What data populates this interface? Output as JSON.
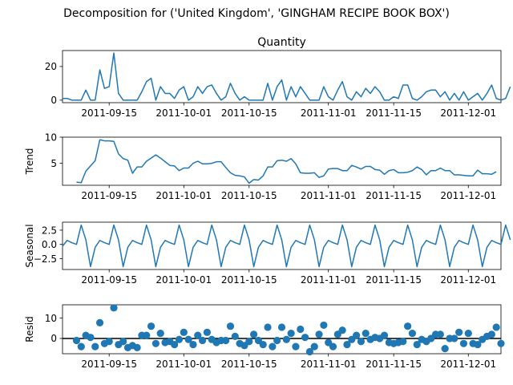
{
  "figure": {
    "suptitle": "Decomposition for ('United Kingdom', 'GINGHAM RECIPE BOOK BOX')"
  },
  "chart_data": {
    "type": "line",
    "x_start": "2011-09-05",
    "x_end": "2011-12-08",
    "x_ticks": [
      "2011-09-15",
      "2011-10-01",
      "2011-10-15",
      "2011-11-01",
      "2011-11-15",
      "2011-12-01"
    ],
    "panels": [
      {
        "key": "quantity",
        "type": "line",
        "title": "Quantity",
        "ylabel": "",
        "ylim": [
          -1.5,
          29.5
        ],
        "y_ticks": [
          0,
          20
        ],
        "values": [
          1,
          1,
          0,
          0,
          0,
          6,
          0,
          0,
          18,
          7,
          8,
          28,
          4,
          0,
          0,
          0,
          0,
          5,
          11,
          13,
          0,
          8,
          4,
          4,
          1,
          6,
          8,
          0,
          2,
          8,
          4,
          8,
          9,
          4,
          0,
          2,
          10,
          4,
          0,
          2,
          0,
          0,
          0,
          0,
          10,
          0,
          8,
          12,
          0,
          8,
          2,
          8,
          4,
          0,
          0,
          0,
          8,
          2,
          0,
          6,
          11,
          2,
          0,
          5,
          2,
          7,
          4,
          8,
          5,
          0,
          0,
          2,
          1,
          9,
          9,
          1,
          0,
          2,
          5,
          6,
          6,
          2,
          5,
          0,
          4,
          0,
          5,
          0,
          2,
          4,
          0,
          4,
          9,
          1,
          0,
          1,
          8
        ]
      },
      {
        "key": "trend",
        "type": "line",
        "title": "",
        "ylabel": "Trend",
        "ylim": [
          0.8,
          10.0
        ],
        "y_ticks": [
          5,
          10
        ],
        "start_index": 3,
        "values": [
          1.4,
          1.3,
          3.5,
          4.5,
          5.5,
          9.5,
          9.3,
          9.3,
          9.2,
          6.8,
          5.9,
          5.6,
          3.1,
          4.3,
          4.3,
          5.4,
          6.0,
          6.6,
          6.0,
          5.3,
          4.6,
          4.5,
          3.6,
          4.1,
          4.1,
          5.0,
          5.4,
          4.9,
          4.9,
          5.0,
          5.3,
          5.3,
          4.2,
          3.2,
          2.7,
          2.6,
          2.4,
          1.2,
          1.9,
          1.8,
          2.6,
          4.3,
          4.3,
          5.5,
          5.6,
          5.4,
          5.9,
          4.9,
          3.2,
          3.1,
          3.1,
          3.2,
          2.3,
          2.6,
          3.9,
          4.0,
          4.0,
          3.6,
          3.6,
          4.6,
          4.3,
          3.9,
          4.4,
          4.4,
          3.8,
          3.7,
          2.9,
          3.6,
          3.8,
          3.2,
          3.2,
          3.3,
          3.6,
          4.3,
          3.8,
          2.8,
          3.6,
          3.6,
          4.1,
          3.6,
          3.6,
          2.8,
          2.8,
          2.7,
          2.6,
          2.6,
          3.7,
          3.0,
          3.0,
          2.9,
          3.4
        ]
      },
      {
        "key": "seasonal",
        "type": "line",
        "title": "",
        "ylabel": "Seasonal",
        "ylim": [
          -4.4,
          3.9
        ],
        "y_ticks": [
          -2.5,
          0.0,
          2.5
        ],
        "y_tick_labels": [
          "−2.5",
          "0.0",
          "2.5"
        ],
        "values": [
          -0.3,
          0.7,
          0.3,
          0.0,
          3.4,
          0.8,
          -3.9,
          -0.5,
          0.7,
          0.3,
          0.0,
          3.4,
          0.8,
          -3.9,
          -0.5,
          0.7,
          0.3,
          0.0,
          3.4,
          0.8,
          -3.9,
          -0.5,
          0.7,
          0.3,
          0.0,
          3.4,
          0.8,
          -3.9,
          -0.5,
          0.7,
          0.3,
          0.0,
          3.4,
          0.8,
          -3.9,
          -0.5,
          0.7,
          0.3,
          0.0,
          3.4,
          0.8,
          -3.9,
          -0.5,
          0.7,
          0.3,
          0.0,
          3.4,
          0.8,
          -3.9,
          -0.5,
          0.7,
          0.3,
          0.0,
          3.4,
          0.8,
          -3.9,
          -0.5,
          0.7,
          0.3,
          0.0,
          3.4,
          0.8,
          -3.9,
          -0.5,
          0.7,
          0.3,
          0.0,
          3.4,
          0.8,
          -3.9,
          -0.5,
          0.7,
          0.3,
          0.0,
          3.4,
          0.8,
          -3.9,
          -0.5,
          0.7,
          0.3,
          0.0,
          3.4,
          0.8,
          -3.9,
          -0.5,
          0.7,
          0.3,
          0.0,
          3.4,
          0.8,
          -3.9,
          -0.5,
          0.7,
          0.3,
          0.0,
          3.4,
          0.8
        ]
      },
      {
        "key": "resid",
        "type": "scatter",
        "title": "",
        "ylabel": "Resid",
        "ylim": [
          -7.5,
          16.5
        ],
        "y_ticks": [
          0,
          10
        ],
        "zero_line": true,
        "start_index": 3,
        "values": [
          -1.0,
          -4.0,
          1.5,
          0.5,
          -4.0,
          7.7,
          -2.5,
          -1.5,
          15.0,
          -3.0,
          -1.5,
          -4.5,
          -3.5,
          -4.5,
          1.5,
          1.5,
          6.0,
          -2.5,
          2.5,
          -2.0,
          -1.5,
          -3.0,
          -0.5,
          3.0,
          -0.5,
          -3.0,
          1.5,
          -1.0,
          3.0,
          -0.5,
          -2.0,
          -1.0,
          -1.0,
          6.0,
          1.0,
          -2.5,
          -3.5,
          -1.5,
          2.0,
          -1.0,
          -3.0,
          5.5,
          -4.0,
          -1.0,
          5.5,
          -0.5,
          2.5,
          -4.0,
          4.5,
          0.5,
          -6.5,
          -4.0,
          2.0,
          6.5,
          -2.0,
          -4.0,
          2.0,
          4.0,
          -3.0,
          -0.5,
          1.5,
          -1.5,
          2.5,
          -0.5,
          0.5,
          0.0,
          1.5,
          -2.0,
          -2.5,
          -2.0,
          -1.5,
          6.0,
          2.5,
          -3.0,
          -0.5,
          -1.5,
          0.0,
          2.0,
          2.0,
          -5.0,
          0.0,
          0.0,
          3.0,
          -2.5,
          2.5,
          -2.5,
          -3.0,
          -0.5,
          1.0,
          2.0,
          5.5,
          -2.5
        ]
      }
    ]
  }
}
